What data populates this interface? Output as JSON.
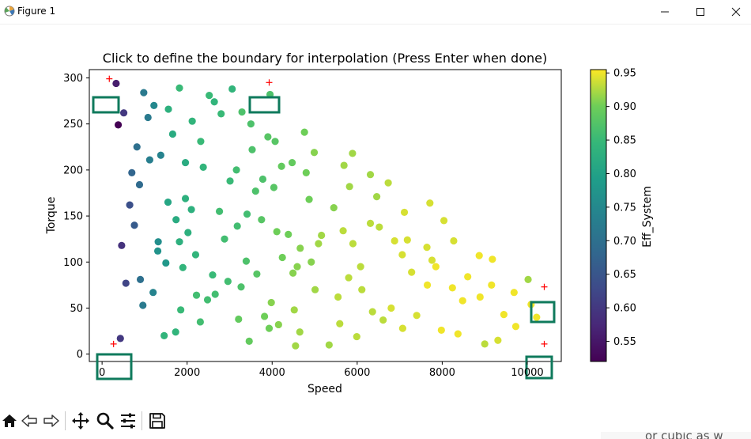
{
  "window": {
    "title": "Figure 1"
  },
  "chart_data": {
    "type": "scatter",
    "title": "Click to define the boundary for interpolation (Press Enter when done)",
    "xlabel": "Speed",
    "ylabel": "Torque",
    "xlim": [
      -300,
      10800
    ],
    "ylim": [
      -8,
      309
    ],
    "xticks": [
      0,
      2000,
      4000,
      6000,
      8000,
      10000
    ],
    "yticks": [
      0,
      50,
      100,
      150,
      200,
      250,
      300
    ],
    "colorbar": {
      "label": "Eff_System",
      "min": 0.52,
      "max": 0.955,
      "ticks": [
        0.55,
        0.6,
        0.65,
        0.7,
        0.75,
        0.8,
        0.85,
        0.9,
        0.95
      ]
    },
    "points": [
      [
        330,
        294,
        0.56
      ],
      [
        510,
        262,
        0.6
      ],
      [
        380,
        249,
        0.52
      ],
      [
        980,
        284,
        0.72
      ],
      [
        1220,
        270,
        0.75
      ],
      [
        1080,
        257,
        0.72
      ],
      [
        820,
        225,
        0.7
      ],
      [
        1120,
        211,
        0.73
      ],
      [
        1380,
        216,
        0.74
      ],
      [
        700,
        197,
        0.68
      ],
      [
        880,
        184,
        0.69
      ],
      [
        650,
        162,
        0.64
      ],
      [
        760,
        140,
        0.66
      ],
      [
        460,
        118,
        0.59
      ],
      [
        1320,
        122,
        0.76
      ],
      [
        1310,
        112,
        0.77
      ],
      [
        1500,
        99,
        0.78
      ],
      [
        560,
        77,
        0.62
      ],
      [
        900,
        81,
        0.7
      ],
      [
        1200,
        67,
        0.74
      ],
      [
        960,
        53,
        0.72
      ],
      [
        430,
        17,
        0.6
      ],
      [
        1820,
        289,
        0.85
      ],
      [
        1560,
        266,
        0.83
      ],
      [
        1660,
        239,
        0.82
      ],
      [
        2520,
        281,
        0.85
      ],
      [
        2640,
        274,
        0.84
      ],
      [
        2800,
        261,
        0.85
      ],
      [
        3060,
        288,
        0.84
      ],
      [
        2120,
        253,
        0.84
      ],
      [
        2320,
        231,
        0.85
      ],
      [
        1960,
        208,
        0.82
      ],
      [
        2380,
        203,
        0.84
      ],
      [
        1550,
        165,
        0.81
      ],
      [
        1960,
        169,
        0.83
      ],
      [
        2100,
        157,
        0.83
      ],
      [
        1740,
        146,
        0.82
      ],
      [
        2020,
        132,
        0.83
      ],
      [
        1820,
        122,
        0.83
      ],
      [
        2200,
        108,
        0.84
      ],
      [
        1900,
        94,
        0.84
      ],
      [
        2600,
        86,
        0.85
      ],
      [
        2220,
        64,
        0.86
      ],
      [
        2480,
        59,
        0.86
      ],
      [
        2660,
        65,
        0.86
      ],
      [
        1850,
        48,
        0.85
      ],
      [
        2310,
        35,
        0.86
      ],
      [
        1730,
        24,
        0.84
      ],
      [
        1460,
        20,
        0.84
      ],
      [
        3290,
        263,
        0.87
      ],
      [
        3500,
        250,
        0.87
      ],
      [
        3530,
        222,
        0.87
      ],
      [
        3900,
        236,
        0.88
      ],
      [
        4070,
        231,
        0.88
      ],
      [
        3160,
        200,
        0.86
      ],
      [
        3010,
        188,
        0.85
      ],
      [
        3780,
        190,
        0.87
      ],
      [
        3610,
        177,
        0.87
      ],
      [
        4040,
        181,
        0.88
      ],
      [
        2760,
        155,
        0.86
      ],
      [
        3180,
        139,
        0.86
      ],
      [
        2880,
        125,
        0.86
      ],
      [
        3410,
        152,
        0.86
      ],
      [
        3750,
        146,
        0.88
      ],
      [
        3950,
        282,
        0.87
      ],
      [
        4220,
        204,
        0.89
      ],
      [
        4470,
        208,
        0.89
      ],
      [
        4760,
        241,
        0.9
      ],
      [
        4990,
        219,
        0.91
      ],
      [
        4800,
        197,
        0.9
      ],
      [
        4870,
        168,
        0.9
      ],
      [
        5450,
        159,
        0.91
      ],
      [
        5690,
        205,
        0.92
      ],
      [
        5890,
        218,
        0.92
      ],
      [
        5820,
        182,
        0.92
      ],
      [
        6310,
        195,
        0.92
      ],
      [
        6460,
        171,
        0.92
      ],
      [
        6730,
        186,
        0.93
      ],
      [
        4110,
        133,
        0.9
      ],
      [
        4380,
        130,
        0.9
      ],
      [
        4660,
        115,
        0.91
      ],
      [
        5160,
        129,
        0.92
      ],
      [
        5670,
        134,
        0.93
      ],
      [
        5900,
        120,
        0.93
      ],
      [
        5090,
        120,
        0.92
      ],
      [
        4920,
        100,
        0.91
      ],
      [
        4240,
        105,
        0.9
      ],
      [
        3390,
        101,
        0.87
      ],
      [
        3640,
        87,
        0.88
      ],
      [
        3270,
        73,
        0.87
      ],
      [
        2960,
        79,
        0.86
      ],
      [
        4490,
        88,
        0.91
      ],
      [
        4590,
        95,
        0.91
      ],
      [
        5010,
        70,
        0.92
      ],
      [
        5800,
        83,
        0.93
      ],
      [
        6080,
        95,
        0.93
      ],
      [
        6110,
        70,
        0.93
      ],
      [
        6310,
        142,
        0.93
      ],
      [
        6520,
        138,
        0.93
      ],
      [
        7110,
        154,
        0.94
      ],
      [
        6880,
        123,
        0.94
      ],
      [
        7060,
        108,
        0.94
      ],
      [
        7280,
        89,
        0.94
      ],
      [
        7180,
        124,
        0.94
      ],
      [
        7640,
        116,
        0.94
      ],
      [
        7650,
        75,
        0.95
      ],
      [
        7760,
        102,
        0.94
      ],
      [
        7850,
        95,
        0.95
      ],
      [
        7710,
        164,
        0.94
      ],
      [
        8040,
        145,
        0.94
      ],
      [
        8270,
        123,
        0.94
      ],
      [
        8600,
        84,
        0.95
      ],
      [
        8240,
        72,
        0.95
      ],
      [
        8480,
        58,
        0.95
      ],
      [
        8870,
        107,
        0.95
      ],
      [
        8890,
        62,
        0.95
      ],
      [
        9180,
        103,
        0.95
      ],
      [
        9160,
        75,
        0.95
      ],
      [
        9690,
        67,
        0.95
      ],
      [
        9450,
        43,
        0.95
      ],
      [
        10020,
        81,
        0.92
      ],
      [
        10090,
        54,
        0.95
      ],
      [
        10220,
        40,
        0.95
      ],
      [
        9730,
        30,
        0.95
      ],
      [
        9310,
        15,
        0.94
      ],
      [
        9000,
        11,
        0.93
      ],
      [
        3820,
        41,
        0.9
      ],
      [
        3980,
        56,
        0.91
      ],
      [
        3930,
        28,
        0.9
      ],
      [
        4150,
        32,
        0.91
      ],
      [
        4520,
        48,
        0.92
      ],
      [
        4650,
        24,
        0.92
      ],
      [
        3210,
        38,
        0.89
      ],
      [
        3460,
        14,
        0.89
      ],
      [
        4550,
        9,
        0.92
      ],
      [
        5340,
        10,
        0.92
      ],
      [
        5590,
        33,
        0.93
      ],
      [
        5990,
        19,
        0.93
      ],
      [
        6360,
        46,
        0.93
      ],
      [
        6610,
        37,
        0.93
      ],
      [
        6800,
        50,
        0.94
      ],
      [
        5550,
        62,
        0.93
      ],
      [
        7070,
        28,
        0.94
      ],
      [
        7400,
        42,
        0.94
      ],
      [
        7980,
        26,
        0.95
      ],
      [
        8370,
        22,
        0.95
      ]
    ],
    "clicks": [
      {
        "x": 170,
        "y": 299
      },
      {
        "x": 3930,
        "y": 295
      },
      {
        "x": 10400,
        "y": 73
      },
      {
        "x": 10400,
        "y": 11
      },
      {
        "x": 270,
        "y": 11
      }
    ]
  }
}
